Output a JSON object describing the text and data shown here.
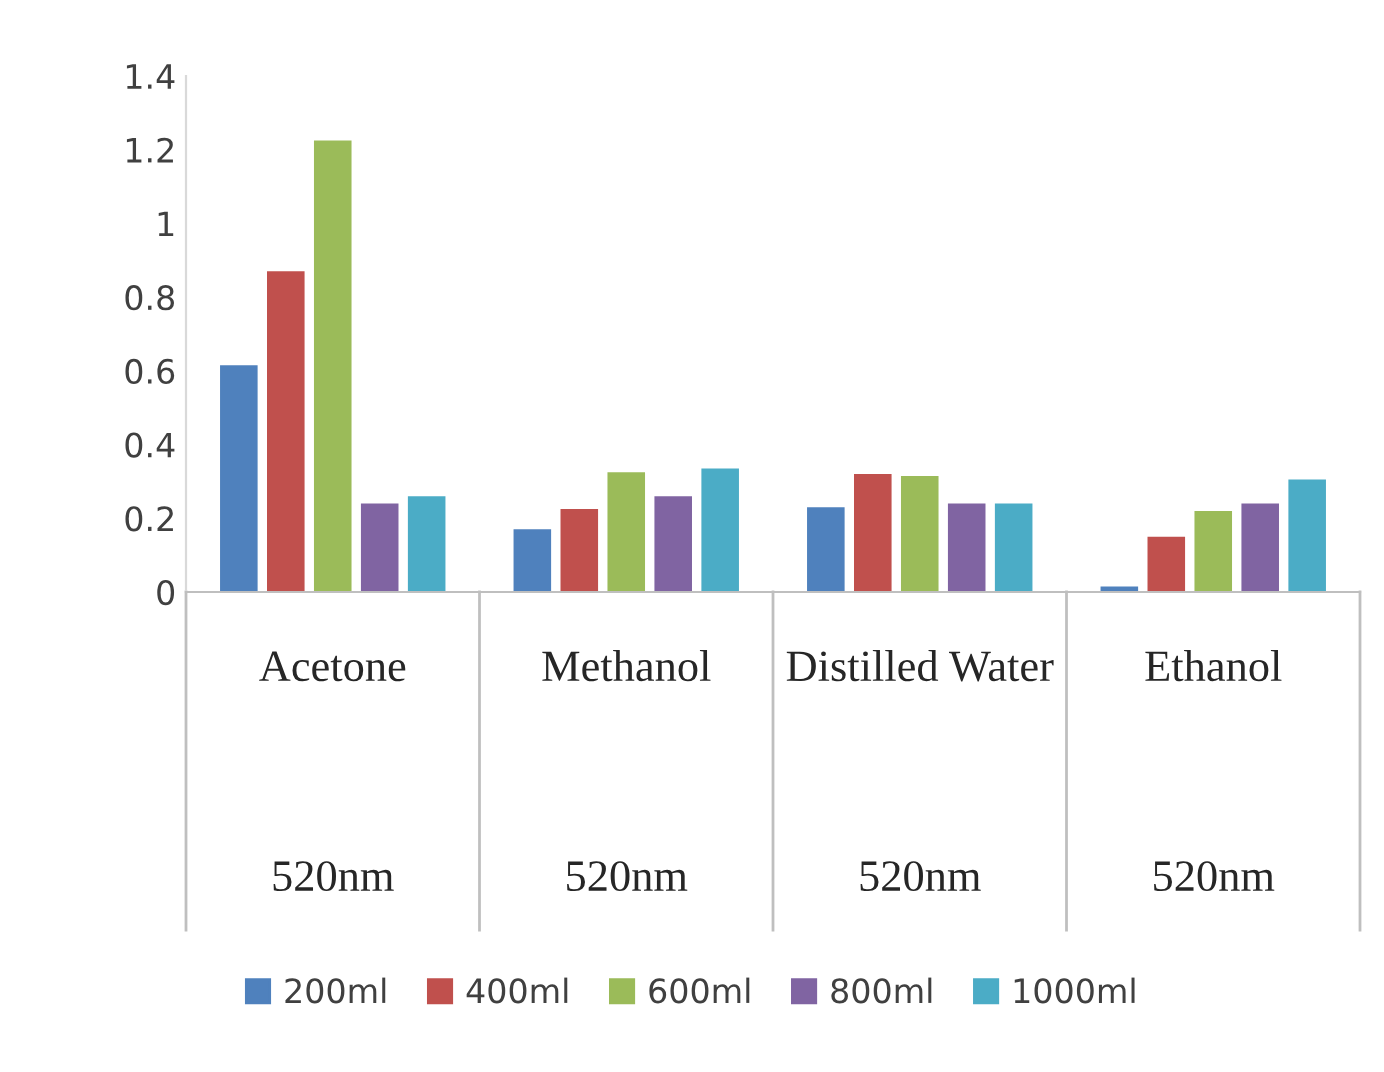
{
  "chart_data": {
    "type": "bar",
    "categories": [
      "Acetone",
      "Methanol",
      "Distilled Water",
      "Ethanol"
    ],
    "series": [
      {
        "name": "200ml",
        "color": "#4f81bd",
        "values": [
          0.615,
          0.17,
          0.23,
          0.015
        ]
      },
      {
        "name": "400ml",
        "color": "#c0504d",
        "values": [
          0.87,
          0.225,
          0.32,
          0.15
        ]
      },
      {
        "name": "600ml",
        "color": "#9bbb59",
        "values": [
          1.225,
          0.325,
          0.315,
          0.22
        ]
      },
      {
        "name": "800ml",
        "color": "#8064a2",
        "values": [
          0.24,
          0.26,
          0.24,
          0.24
        ]
      },
      {
        "name": "1000ml",
        "color": "#4bacc6",
        "values": [
          0.26,
          0.335,
          0.24,
          0.305
        ]
      }
    ],
    "annotations": [
      "520nm",
      "520nm",
      "520nm",
      "520nm"
    ],
    "ylim": [
      0,
      1.4
    ],
    "yticks": [
      0,
      0.2,
      0.4,
      0.6,
      0.8,
      1,
      1.2,
      1.4
    ],
    "grid": false,
    "legend": "bottom"
  }
}
